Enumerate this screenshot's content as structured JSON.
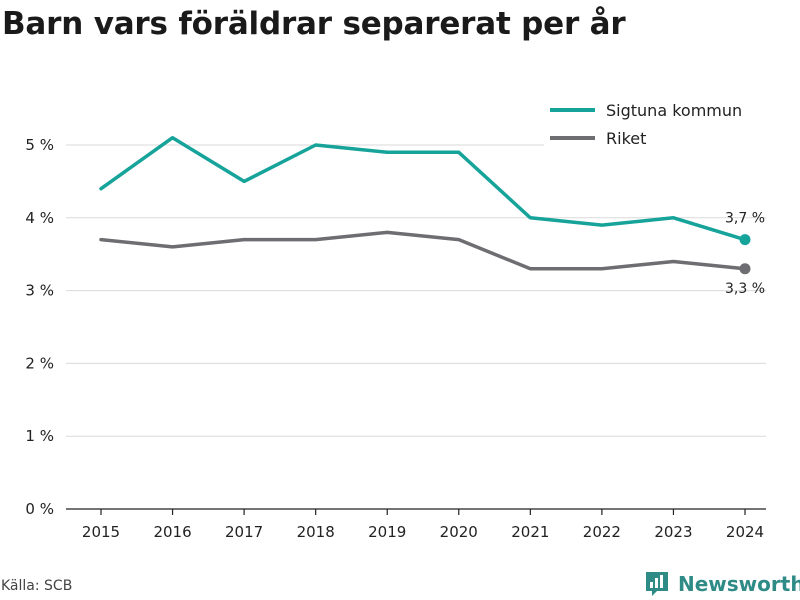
{
  "title": "Barn vars föräldrar separerat per år",
  "source": "Källa: SCB",
  "brand": {
    "name": "Newsworthy",
    "icon": "newsworthy-logo-icon",
    "color": "#2e8b86"
  },
  "chart_data": {
    "type": "line",
    "title": "Barn vars föräldrar separerat per år",
    "x": [
      "2015",
      "2016",
      "2017",
      "2018",
      "2019",
      "2020",
      "2021",
      "2022",
      "2023",
      "2024"
    ],
    "y_ticks": [
      "0 %",
      "1 %",
      "2 %",
      "3 %",
      "4 %",
      "5 %"
    ],
    "ylim": [
      0,
      5.5
    ],
    "grid": true,
    "legend_position": "top-right",
    "series": [
      {
        "name": "Sigtuna kommun",
        "color": "#16a39a",
        "values": [
          4.4,
          5.1,
          4.5,
          5.0,
          4.9,
          4.9,
          4.0,
          3.9,
          4.0,
          3.7
        ],
        "end_label": "3,7 %"
      },
      {
        "name": "Riket",
        "color": "#6d6d72",
        "values": [
          3.7,
          3.6,
          3.7,
          3.7,
          3.8,
          3.7,
          3.3,
          3.3,
          3.4,
          3.3
        ],
        "end_label": "3,3 %"
      }
    ]
  }
}
